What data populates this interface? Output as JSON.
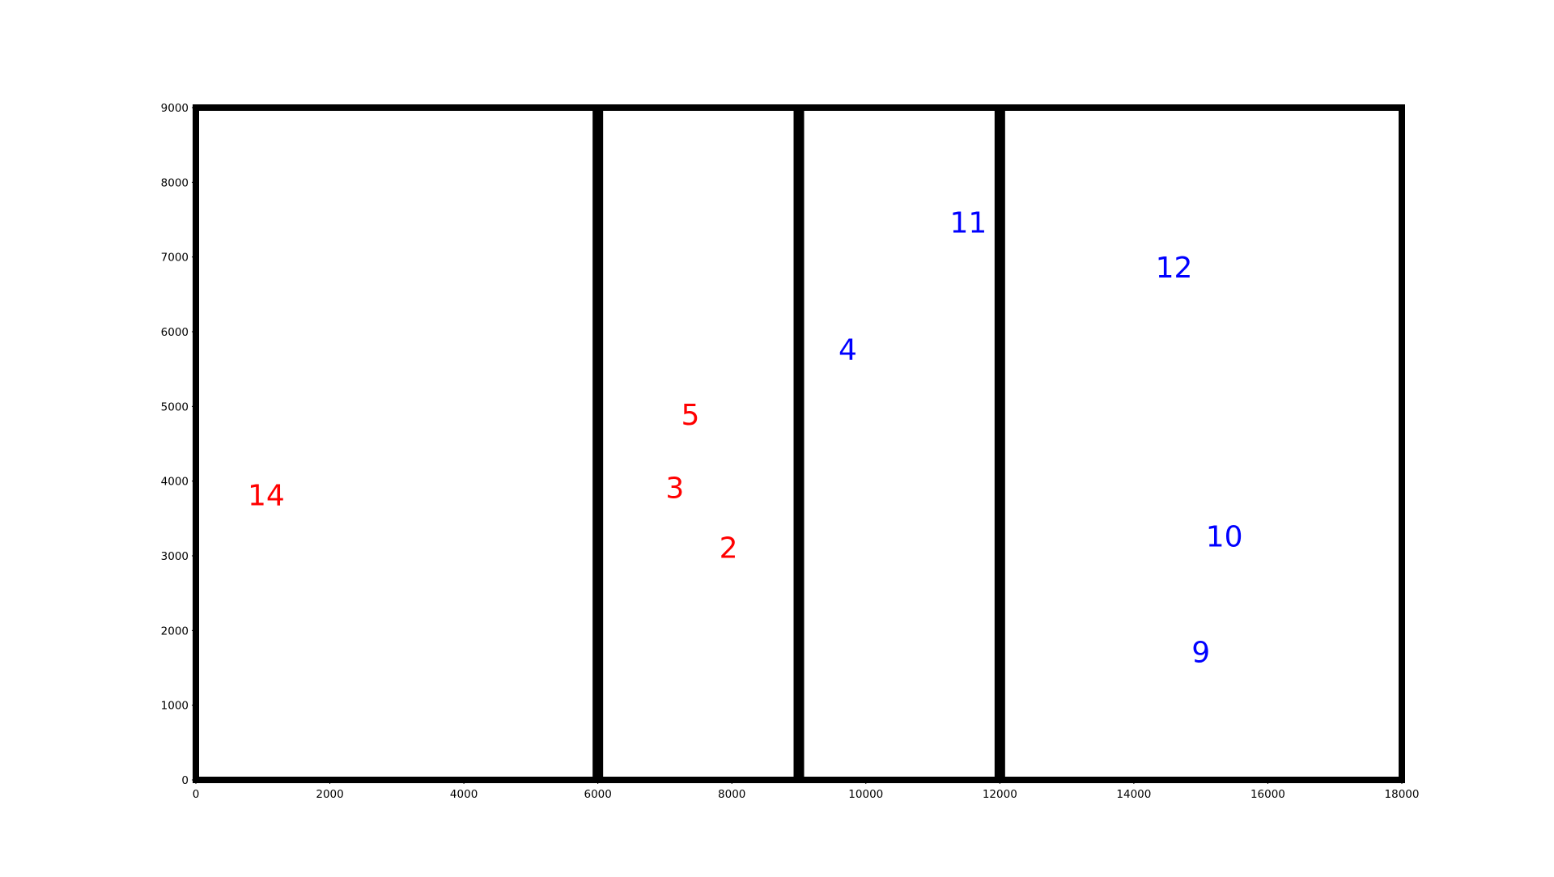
{
  "chart_data": {
    "type": "scatter",
    "title": "",
    "xlabel": "",
    "ylabel": "",
    "xlim": [
      0,
      18000
    ],
    "ylim": [
      0,
      9000
    ],
    "grid": false,
    "x_ticks": [
      0,
      2000,
      4000,
      6000,
      8000,
      10000,
      12000,
      14000,
      16000,
      18000
    ],
    "y_ticks": [
      0,
      1000,
      2000,
      3000,
      4000,
      5000,
      6000,
      7000,
      8000,
      9000
    ],
    "dividers_x": [
      6000,
      9000,
      12000
    ],
    "colors": {
      "red": "#ff0000",
      "blue": "#0000ff",
      "frame": "#000000"
    },
    "labels": [
      {
        "text": "14",
        "x": 1050,
        "y": 3800,
        "color": "red"
      },
      {
        "text": "5",
        "x": 7380,
        "y": 4880,
        "color": "red"
      },
      {
        "text": "3",
        "x": 7150,
        "y": 3900,
        "color": "red"
      },
      {
        "text": "2",
        "x": 7950,
        "y": 3100,
        "color": "red"
      },
      {
        "text": "4",
        "x": 9730,
        "y": 5750,
        "color": "blue"
      },
      {
        "text": "11",
        "x": 11530,
        "y": 7450,
        "color": "blue"
      },
      {
        "text": "12",
        "x": 14600,
        "y": 6850,
        "color": "blue"
      },
      {
        "text": "10",
        "x": 15350,
        "y": 3250,
        "color": "blue"
      },
      {
        "text": "9",
        "x": 15000,
        "y": 1700,
        "color": "blue"
      }
    ]
  }
}
